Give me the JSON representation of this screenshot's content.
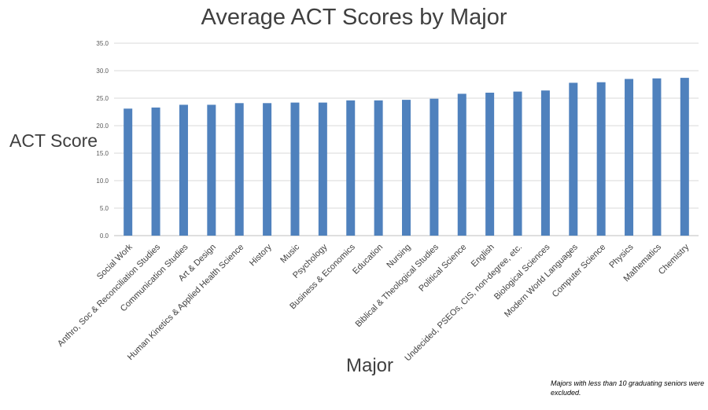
{
  "chart_data": {
    "type": "bar",
    "title": "Average ACT Scores by Major",
    "xlabel": "Major",
    "ylabel": "ACT Score",
    "ylim": [
      0,
      35
    ],
    "yticks": [
      "0.0",
      "5.0",
      "10.0",
      "15.0",
      "20.0",
      "25.0",
      "30.0",
      "35.0"
    ],
    "grid": true,
    "bar_color": "#4F81BD",
    "categories": [
      "Social Work",
      "Anthro, Soc & Reconciliation Studies",
      "Communication Studies",
      "Art & Design",
      "Human Kinetics & Applied Health Science",
      "History",
      "Music",
      "Psychology",
      "Business & Economics",
      "Education",
      "Nursing",
      "Biblical & Theological Studies",
      "Political Science",
      "English",
      "Undecided, PSEOs, CIS, non-degree, etc.",
      "Biological Sciences",
      "Modern World Languages",
      "Computer Science",
      "Physics",
      "Mathematics",
      "Chemistry"
    ],
    "values": [
      23.1,
      23.3,
      23.8,
      23.8,
      24.1,
      24.1,
      24.2,
      24.2,
      24.6,
      24.6,
      24.7,
      24.9,
      25.8,
      26.0,
      26.2,
      26.4,
      27.8,
      27.9,
      28.5,
      28.6,
      28.7
    ],
    "footnote": "Majors with less than 10 graduating seniors were excluded."
  }
}
